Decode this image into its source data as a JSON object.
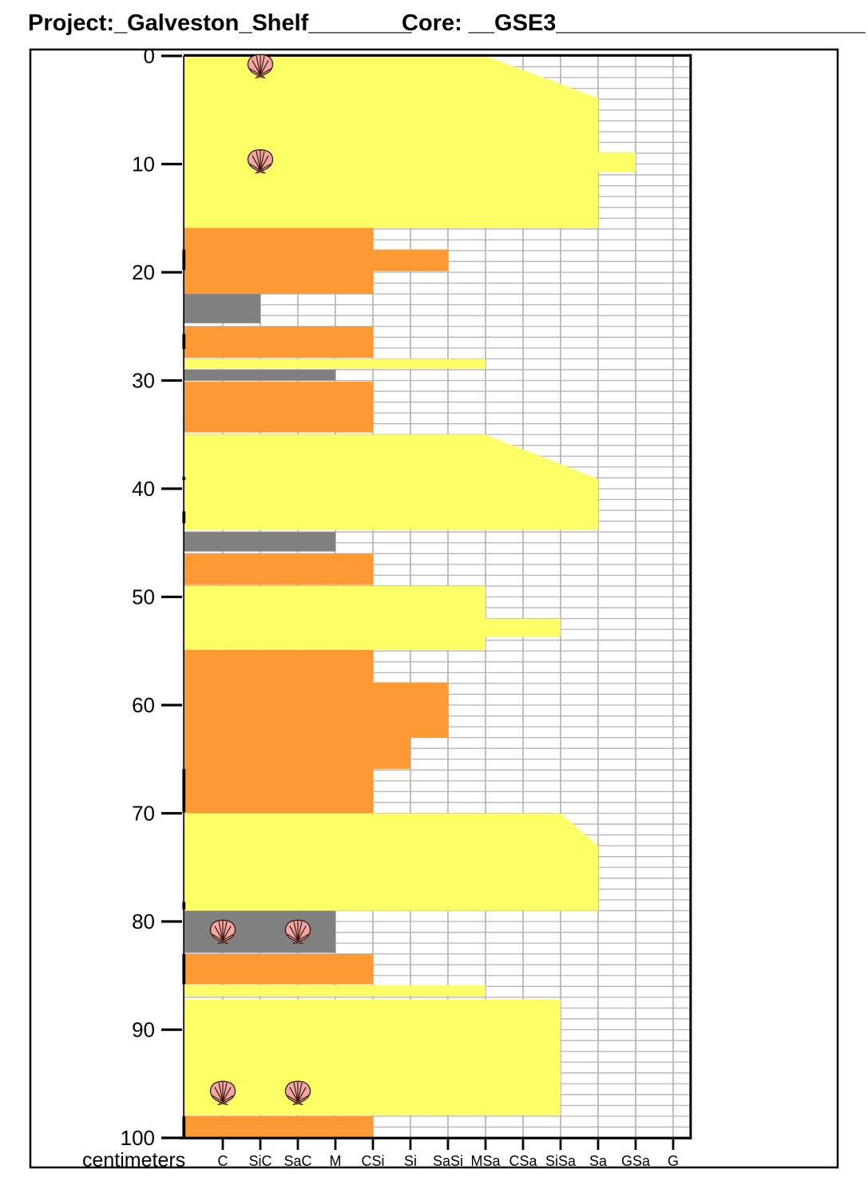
{
  "header": {
    "project_label": "Project:_Galveston_Shelf________",
    "core_label": "Core: __GSE3________________________"
  },
  "colors": {
    "sand": "#FFFF66",
    "muddy_sand": "#FF9933",
    "mud": "#808080",
    "grid": "#B4B4B4",
    "frame": "#000000",
    "shell_fill": "#F0A8A2",
    "shell_line": "#3A1410"
  },
  "chart_data": {
    "type": "bar",
    "subtype": "sediment-core-lithology-log",
    "orientation": "horizontal-grain-size-profile-vs-depth",
    "title": "",
    "ylabel": "centimeters",
    "ylim": [
      0,
      100
    ],
    "y_ticks": [
      0,
      10,
      20,
      30,
      40,
      50,
      60,
      70,
      80,
      90,
      100
    ],
    "x_categories": [
      "C",
      "SiC",
      "SaC",
      "M",
      "CSi",
      "Si",
      "SaSi",
      "MSa",
      "CSa",
      "SiSa",
      "Sa",
      "GSa",
      "G"
    ],
    "grid": true,
    "units": [
      {
        "lithology": "sand",
        "top": 0,
        "base": 15.9,
        "edge": [
          [
            0,
            "MSa"
          ],
          [
            3.9,
            "Sa"
          ],
          [
            8.9,
            "Sa"
          ],
          [
            8.9,
            "GSa"
          ],
          [
            10.7,
            "GSa"
          ],
          [
            10.7,
            "Sa"
          ],
          [
            15.9,
            "Sa"
          ]
        ]
      },
      {
        "lithology": "muddy_sand",
        "top": 15.9,
        "base": 22.0,
        "edge": [
          [
            15.9,
            "CSi"
          ],
          [
            17.9,
            "CSi"
          ],
          [
            17.9,
            "SaSi"
          ],
          [
            19.9,
            "SaSi"
          ],
          [
            19.9,
            "CSi"
          ],
          [
            22.0,
            "CSi"
          ]
        ]
      },
      {
        "lithology": "mud",
        "top": 22.0,
        "base": 24.7,
        "edge": [
          [
            22.0,
            "SiC"
          ],
          [
            24.7,
            "SiC"
          ]
        ]
      },
      {
        "lithology": "muddy_sand",
        "top": 25.0,
        "base": 27.9,
        "edge": [
          [
            25.0,
            "CSi"
          ],
          [
            27.9,
            "CSi"
          ]
        ]
      },
      {
        "lithology": "sand",
        "top": 28.0,
        "base": 28.9,
        "edge": [
          [
            28.0,
            "MSa"
          ],
          [
            28.9,
            "MSa"
          ]
        ]
      },
      {
        "lithology": "mud",
        "top": 29.0,
        "base": 30.0,
        "edge": [
          [
            29.0,
            "M"
          ],
          [
            30.0,
            "M"
          ]
        ]
      },
      {
        "lithology": "muddy_sand",
        "top": 30.1,
        "base": 34.8,
        "edge": [
          [
            30.1,
            "CSi"
          ],
          [
            34.8,
            "CSi"
          ]
        ]
      },
      {
        "lithology": "sand",
        "top": 35.0,
        "base": 43.8,
        "edge": [
          [
            35.0,
            "MSa"
          ],
          [
            39.1,
            "Sa"
          ],
          [
            43.8,
            "Sa"
          ]
        ]
      },
      {
        "lithology": "mud",
        "top": 44.0,
        "base": 45.8,
        "edge": [
          [
            44.0,
            "M"
          ],
          [
            45.8,
            "M"
          ]
        ]
      },
      {
        "lithology": "muddy_sand",
        "top": 46.0,
        "base": 48.9,
        "edge": [
          [
            46.0,
            "CSi"
          ],
          [
            48.9,
            "CSi"
          ]
        ]
      },
      {
        "lithology": "sand",
        "top": 49.0,
        "base": 54.9,
        "edge": [
          [
            49.0,
            "MSa"
          ],
          [
            52.0,
            "MSa"
          ],
          [
            52.0,
            "SiSa"
          ],
          [
            53.7,
            "SiSa"
          ],
          [
            53.7,
            "MSa"
          ],
          [
            54.9,
            "MSa"
          ]
        ]
      },
      {
        "lithology": "muddy_sand",
        "top": 54.9,
        "base": 70.0,
        "edge": [
          [
            54.9,
            "CSi"
          ],
          [
            57.9,
            "CSi"
          ],
          [
            57.9,
            "SaSi"
          ],
          [
            63.0,
            "SaSi"
          ],
          [
            63.0,
            "Si"
          ],
          [
            65.9,
            "Si"
          ],
          [
            65.9,
            "CSi"
          ],
          [
            70.0,
            "CSi"
          ]
        ]
      },
      {
        "lithology": "sand",
        "top": 70.0,
        "base": 79.0,
        "edge": [
          [
            70.0,
            "SiSa"
          ],
          [
            73.0,
            "Sa"
          ],
          [
            79.0,
            "Sa"
          ]
        ]
      },
      {
        "lithology": "mud",
        "top": 79.0,
        "base": 82.9,
        "edge": [
          [
            79.0,
            "M"
          ],
          [
            82.9,
            "M"
          ]
        ]
      },
      {
        "lithology": "muddy_sand",
        "top": 83.0,
        "base": 85.8,
        "edge": [
          [
            83.0,
            "CSi"
          ],
          [
            85.8,
            "CSi"
          ]
        ]
      },
      {
        "lithology": "sand",
        "top": 85.9,
        "base": 86.9,
        "edge": [
          [
            85.9,
            "MSa"
          ],
          [
            86.9,
            "MSa"
          ]
        ]
      },
      {
        "lithology": "sand",
        "top": 87.2,
        "base": 97.9,
        "edge": [
          [
            87.2,
            "SiSa"
          ],
          [
            97.9,
            "SiSa"
          ]
        ]
      },
      {
        "lithology": "muddy_sand",
        "top": 98.0,
        "base": 99.9,
        "edge": [
          [
            98.0,
            "CSi"
          ],
          [
            99.9,
            "CSi"
          ]
        ]
      }
    ],
    "shell_markers": [
      {
        "depth_cm": 1.0,
        "at": "SiC"
      },
      {
        "depth_cm": 9.8,
        "at": "SiC"
      },
      {
        "depth_cm": 81.0,
        "at": "C"
      },
      {
        "depth_cm": 81.0,
        "at": "SaC"
      },
      {
        "depth_cm": 95.9,
        "at": "C"
      },
      {
        "depth_cm": 95.9,
        "at": "SaC"
      }
    ],
    "left_edge_marks": [
      [
        17.9,
        19.8
      ],
      [
        25.7,
        27.1
      ],
      [
        38.9,
        39.2
      ],
      [
        42.1,
        43.2
      ],
      [
        65.9,
        69.9
      ],
      [
        78.2,
        78.9
      ],
      [
        83.0,
        85.8
      ],
      [
        98.0,
        99.9
      ]
    ]
  }
}
